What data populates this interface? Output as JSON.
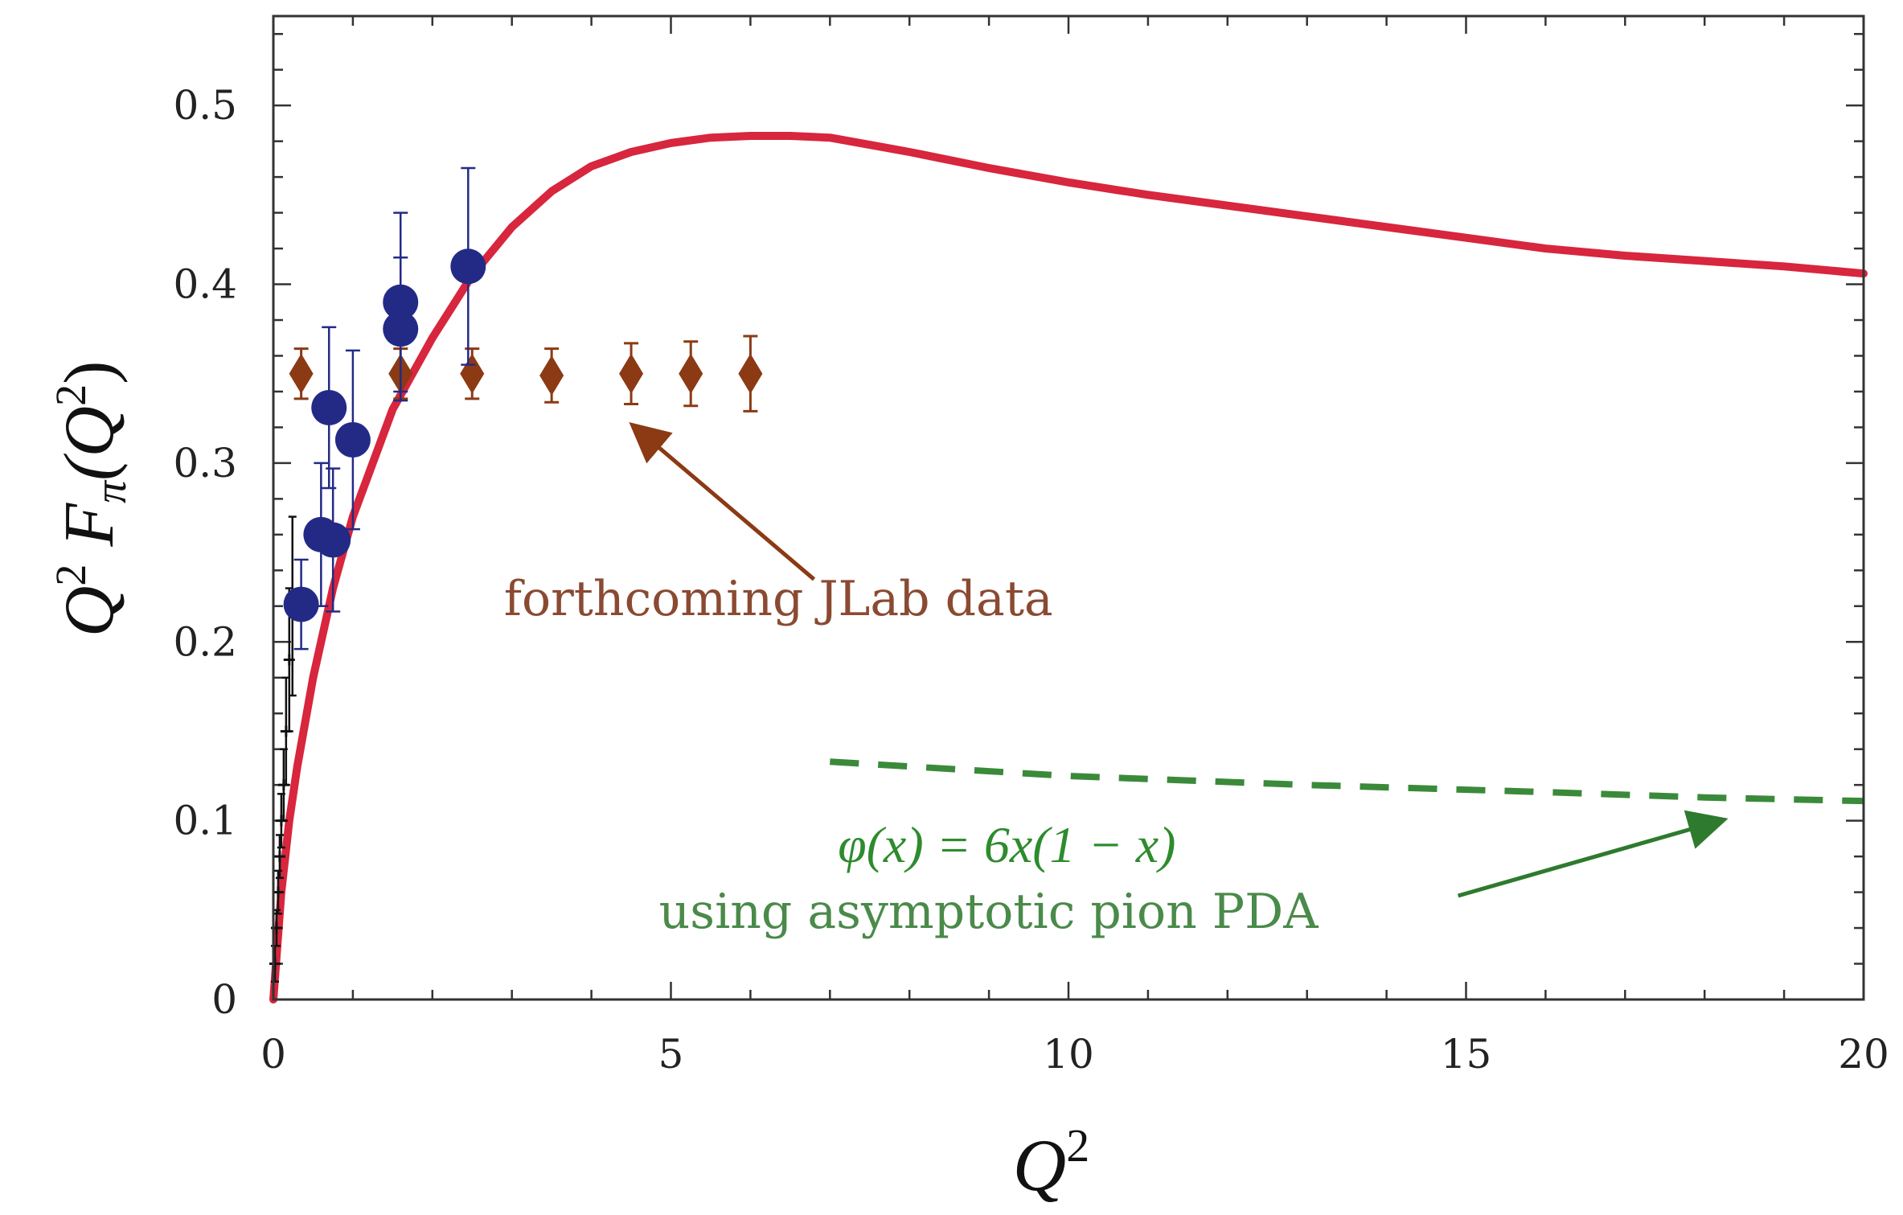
{
  "chart_data": {
    "type": "scatter",
    "title": "",
    "xlabel": {
      "base": "Q",
      "sup": "2"
    },
    "ylabel": {
      "parts": [
        "Q",
        "2",
        " F",
        "π",
        "(Q",
        "2",
        ")"
      ]
    },
    "xlim": [
      0,
      20
    ],
    "ylim": [
      0,
      0.55
    ],
    "x_ticks": [
      {
        "value": 0,
        "label": "0"
      },
      {
        "value": 5,
        "label": "5"
      },
      {
        "value": 10,
        "label": "10"
      },
      {
        "value": 15,
        "label": "15"
      },
      {
        "value": 20,
        "label": "20"
      }
    ],
    "y_ticks": [
      {
        "value": 0,
        "label": "0"
      },
      {
        "value": 0.1,
        "label": "0.1"
      },
      {
        "value": 0.2,
        "label": "0.2"
      },
      {
        "value": 0.3,
        "label": "0.3"
      },
      {
        "value": 0.4,
        "label": "0.4"
      },
      {
        "value": 0.5,
        "label": "0.5"
      }
    ],
    "grid": false,
    "series": [
      {
        "kind": "line",
        "color": "#d7263d",
        "x": [
          0.0,
          0.05,
          0.1,
          0.2,
          0.3,
          0.5,
          0.75,
          1.0,
          1.5,
          2.0,
          2.5,
          3.0,
          3.5,
          4.0,
          4.5,
          5.0,
          5.5,
          6.0,
          6.5,
          7.0,
          7.5,
          8.0,
          9.0,
          10.0,
          11.0,
          12.0,
          13.0,
          14.0,
          15.0,
          16.0,
          17.0,
          18.0,
          19.0,
          20.0
        ],
        "y": [
          0.0,
          0.03,
          0.06,
          0.1,
          0.13,
          0.18,
          0.23,
          0.27,
          0.33,
          0.37,
          0.405,
          0.432,
          0.452,
          0.466,
          0.474,
          0.479,
          0.482,
          0.483,
          0.483,
          0.482,
          0.478,
          0.474,
          0.465,
          0.457,
          0.45,
          0.444,
          0.438,
          0.432,
          0.426,
          0.42,
          0.416,
          0.413,
          0.41,
          0.406
        ]
      },
      {
        "kind": "dashed-line",
        "color": "#3a8a3a",
        "x": [
          7.0,
          10.0,
          13.0,
          16.0,
          18.0,
          20.0
        ],
        "y": [
          0.133,
          0.125,
          0.12,
          0.116,
          0.113,
          0.111
        ]
      },
      {
        "kind": "points",
        "marker": "circle",
        "color": "#232a86",
        "points": [
          {
            "x": 0.35,
            "y": 0.221,
            "err": 0.025
          },
          {
            "x": 0.6,
            "y": 0.26,
            "err": 0.04
          },
          {
            "x": 0.7,
            "y": 0.331,
            "err": 0.045
          },
          {
            "x": 0.75,
            "y": 0.257,
            "err": 0.04
          },
          {
            "x": 1.0,
            "y": 0.313,
            "err": 0.05
          },
          {
            "x": 1.6,
            "y": 0.39,
            "err": 0.05
          },
          {
            "x": 1.6,
            "y": 0.375,
            "err": 0.04
          },
          {
            "x": 2.45,
            "y": 0.41,
            "err": 0.055
          }
        ]
      },
      {
        "kind": "points",
        "marker": "diamond",
        "color": "#8b3a14",
        "points": [
          {
            "x": 0.35,
            "y": 0.35,
            "err": 0.014
          },
          {
            "x": 1.6,
            "y": 0.35,
            "err": 0.014
          },
          {
            "x": 2.5,
            "y": 0.35,
            "err": 0.014
          },
          {
            "x": 3.5,
            "y": 0.349,
            "err": 0.015
          },
          {
            "x": 4.5,
            "y": 0.35,
            "err": 0.017
          },
          {
            "x": 5.25,
            "y": 0.35,
            "err": 0.018
          },
          {
            "x": 6.0,
            "y": 0.35,
            "err": 0.021
          }
        ]
      },
      {
        "kind": "points",
        "marker": "small-cross",
        "color": "#111111",
        "points": [
          {
            "x": 0.02,
            "y": 0.02,
            "err": 0.01
          },
          {
            "x": 0.04,
            "y": 0.04,
            "err": 0.01
          },
          {
            "x": 0.06,
            "y": 0.06,
            "err": 0.012
          },
          {
            "x": 0.08,
            "y": 0.08,
            "err": 0.012
          },
          {
            "x": 0.1,
            "y": 0.1,
            "err": 0.015
          },
          {
            "x": 0.13,
            "y": 0.12,
            "err": 0.02
          },
          {
            "x": 0.16,
            "y": 0.15,
            "err": 0.03
          },
          {
            "x": 0.2,
            "y": 0.19,
            "err": 0.04
          },
          {
            "x": 0.24,
            "y": 0.22,
            "err": 0.05
          }
        ]
      }
    ],
    "annotations": [
      {
        "text": "forthcoming JLab data",
        "color": "#8a4a32",
        "text_x": 2.9,
        "text_y": 0.215,
        "arrow_from": [
          6.8,
          0.235
        ],
        "arrow_to": [
          4.55,
          0.32
        ]
      },
      {
        "text": "φ(x) = 6x(1 − x)",
        "color": "#2e8b2e",
        "text_x": 7.1,
        "text_y": 0.077
      },
      {
        "text": "using asymptotic pion PDA",
        "color": "#4a8a4a",
        "text_x": 4.85,
        "text_y": 0.04,
        "arrow_from": [
          14.9,
          0.058
        ],
        "arrow_to": [
          18.2,
          0.1
        ]
      }
    ]
  }
}
